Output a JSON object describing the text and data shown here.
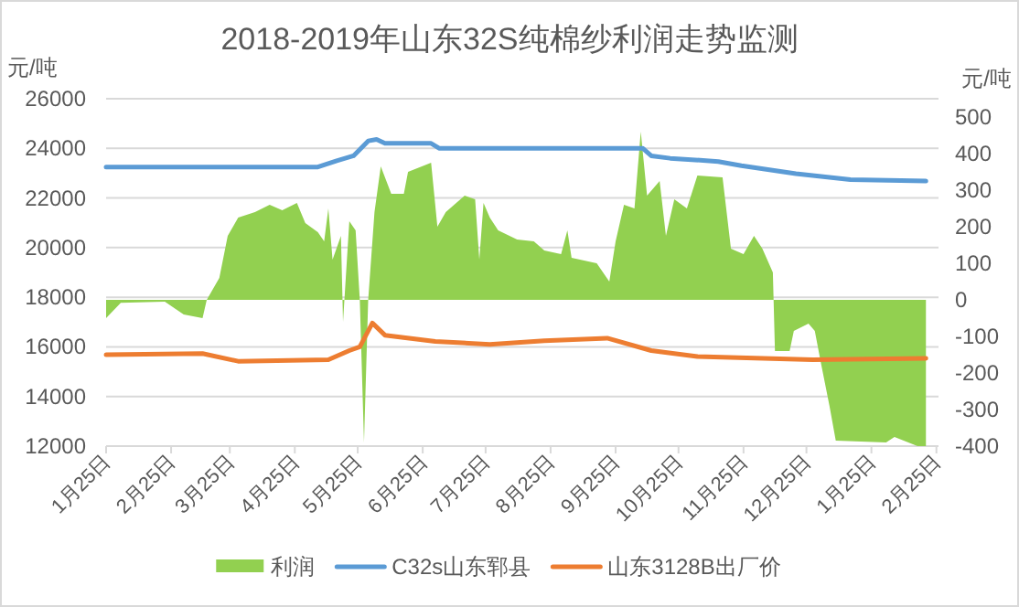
{
  "chart_data": {
    "type": "line",
    "title": "2018-2019年山东32S纯棉纱利润走势监测",
    "ylabel": "元/吨",
    "y2label": "元/吨",
    "grid": "y",
    "legend": "bottom",
    "xlim": [
      "2018-01-25",
      "2019-02-26"
    ],
    "xticks": [
      {
        "value": "2018-01-25",
        "label": "1月25日"
      },
      {
        "value": "2018-02-25",
        "label": "2月25日"
      },
      {
        "value": "2018-03-25",
        "label": "3月25日"
      },
      {
        "value": "2018-04-25",
        "label": "4月25日"
      },
      {
        "value": "2018-05-25",
        "label": "5月25日"
      },
      {
        "value": "2018-06-25",
        "label": "6月25日"
      },
      {
        "value": "2018-07-25",
        "label": "7月25日"
      },
      {
        "value": "2018-08-25",
        "label": "8月25日"
      },
      {
        "value": "2018-09-25",
        "label": "9月25日"
      },
      {
        "value": "2018-10-25",
        "label": "10月25日"
      },
      {
        "value": "2018-11-25",
        "label": "11月25日"
      },
      {
        "value": "2018-12-25",
        "label": "12月25日"
      },
      {
        "value": "2019-01-25",
        "label": "1月25日"
      },
      {
        "value": "2019-02-25",
        "label": "2月25日"
      }
    ],
    "ylim": [
      12000,
      26000
    ],
    "yticks": [
      12000,
      14000,
      16000,
      18000,
      20000,
      22000,
      24000,
      26000
    ],
    "y2lim": [
      -400,
      550
    ],
    "y2ticks": [
      -400,
      -300,
      -200,
      -100,
      0,
      100,
      200,
      300,
      400,
      500
    ],
    "x": [
      "2018-01-25",
      "2018-02-01",
      "2018-02-22",
      "2018-03-03",
      "2018-03-12",
      "2018-03-14",
      "2018-03-20",
      "2018-03-24",
      "2018-03-29",
      "2018-04-06",
      "2018-04-13",
      "2018-04-19",
      "2018-04-26",
      "2018-04-30",
      "2018-05-06",
      "2018-05-09",
      "2018-05-11",
      "2018-05-13",
      "2018-05-17",
      "2018-05-18",
      "2018-05-21",
      "2018-05-24",
      "2018-05-26",
      "2018-05-28",
      "2018-05-30",
      "2018-06-02",
      "2018-06-05",
      "2018-06-10",
      "2018-06-16",
      "2018-06-18",
      "2018-06-29",
      "2018-07-02",
      "2018-07-06",
      "2018-07-15",
      "2018-07-20",
      "2018-07-22",
      "2018-07-24",
      "2018-07-27",
      "2018-07-31",
      "2018-08-09",
      "2018-08-17",
      "2018-08-22",
      "2018-08-30",
      "2018-09-02",
      "2018-09-04",
      "2018-09-16",
      "2018-09-22",
      "2018-09-25",
      "2018-09-29",
      "2018-10-04",
      "2018-10-07",
      "2018-10-10",
      "2018-10-16",
      "2018-10-19",
      "2018-10-23",
      "2018-10-29",
      "2018-11-03",
      "2018-11-15",
      "2018-11-19",
      "2018-11-25",
      "2018-11-30",
      "2018-12-04",
      "2018-12-09",
      "2018-12-10",
      "2018-12-17",
      "2018-12-19",
      "2018-12-26",
      "2018-12-29",
      "2019-01-01",
      "2019-01-05",
      "2019-01-08",
      "2019-02-01",
      "2019-02-05",
      "2019-02-16",
      "2019-02-20"
    ],
    "series": [
      {
        "name": "利润",
        "type": "area",
        "axis": "y2",
        "color": "#92d050",
        "values": [
          -50,
          -8,
          -5,
          -40,
          -50,
          0,
          60,
          175,
          225,
          240,
          260,
          245,
          265,
          210,
          185,
          160,
          250,
          110,
          175,
          -60,
          215,
          190,
          0,
          -390,
          0,
          240,
          365,
          290,
          290,
          350,
          375,
          200,
          240,
          285,
          275,
          110,
          265,
          225,
          190,
          165,
          160,
          135,
          125,
          190,
          115,
          100,
          50,
          160,
          260,
          250,
          460,
          285,
          325,
          175,
          275,
          250,
          340,
          335,
          140,
          125,
          175,
          140,
          75,
          -140,
          -140,
          -85,
          -65,
          -85,
          -175,
          -290,
          -385,
          -390,
          -375,
          -400,
          -400
        ]
      },
      {
        "name": "C32s山东郓县",
        "axis": "y",
        "color": "#5b9bd5",
        "x": [
          "2018-01-25",
          "2018-05-06",
          "2018-05-15",
          "2018-05-23",
          "2018-05-30",
          "2018-06-03",
          "2018-06-07",
          "2018-06-29",
          "2018-07-03",
          "2018-10-08",
          "2018-10-12",
          "2018-10-21",
          "2018-11-13",
          "2018-11-24",
          "2018-12-20",
          "2019-01-15",
          "2019-02-20"
        ],
        "values": [
          23250,
          23250,
          23500,
          23700,
          24300,
          24360,
          24200,
          24200,
          24000,
          24000,
          23700,
          23600,
          23470,
          23300,
          22980,
          22740,
          22680
        ]
      },
      {
        "name": "山东3128B出厂价",
        "axis": "y",
        "color": "#ed7d31",
        "x": [
          "2018-01-25",
          "2018-03-12",
          "2018-03-29",
          "2018-05-11",
          "2018-05-21",
          "2018-05-26",
          "2018-06-01",
          "2018-06-07",
          "2018-07-01",
          "2018-07-27",
          "2018-08-22",
          "2018-09-21",
          "2018-10-12",
          "2018-11-03",
          "2018-12-28",
          "2019-02-20"
        ],
        "values": [
          15680,
          15730,
          15420,
          15480,
          15850,
          16000,
          16960,
          16470,
          16220,
          16100,
          16250,
          16350,
          15850,
          15610,
          15480,
          15540
        ]
      }
    ]
  }
}
